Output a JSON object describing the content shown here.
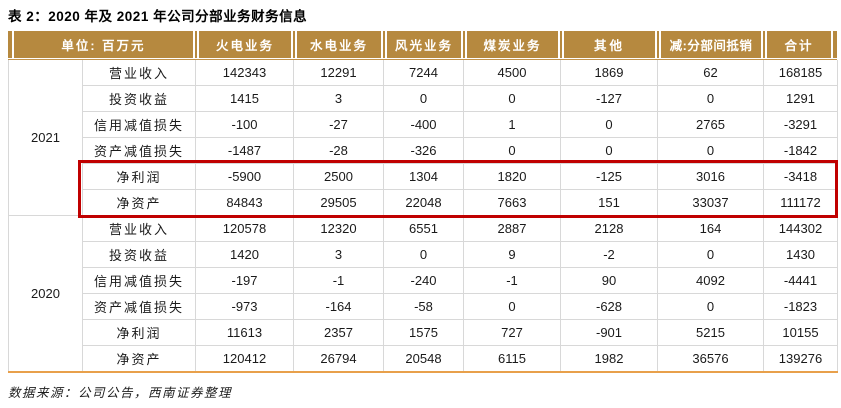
{
  "title": "表 2：2020 年及 2021 年公司分部业务财务信息",
  "source_note": "数据来源：公司公告，西南证券整理",
  "colors": {
    "header_bg": "#B6893F",
    "header_text": "#FFFFFF",
    "grid_line": "#D8D8D8",
    "table_bottom_line": "#E8A04B",
    "highlight_border": "#C00000"
  },
  "table": {
    "unit_header": "单位: 百万元",
    "column_headers": [
      "火电业务",
      "水电业务",
      "风光业务",
      "煤炭业务",
      "其他",
      "减:分部间抵销",
      "合计"
    ],
    "sections": [
      {
        "year": "2021",
        "rows": [
          {
            "label": "营业收入",
            "values": [
              142343,
              12291,
              7244,
              4500,
              1869,
              62,
              168185
            ]
          },
          {
            "label": "投资收益",
            "values": [
              1415,
              3,
              0,
              0,
              -127,
              0,
              1291
            ]
          },
          {
            "label": "信用减值损失",
            "values": [
              -100,
              -27,
              -400,
              1,
              0,
              2765,
              -3291
            ]
          },
          {
            "label": "资产减值损失",
            "values": [
              -1487,
              -28,
              -326,
              0,
              0,
              0,
              -1842
            ]
          },
          {
            "label": "净利润",
            "values": [
              -5900,
              2500,
              1304,
              1820,
              -125,
              3016,
              -3418
            ],
            "highlighted": true
          },
          {
            "label": "净资产",
            "values": [
              84843,
              29505,
              22048,
              7663,
              151,
              33037,
              111172
            ],
            "highlighted": true
          }
        ]
      },
      {
        "year": "2020",
        "rows": [
          {
            "label": "营业收入",
            "values": [
              120578,
              12320,
              6551,
              2887,
              2128,
              164,
              144302
            ]
          },
          {
            "label": "投资收益",
            "values": [
              1420,
              3,
              0,
              9,
              -2,
              0,
              1430
            ]
          },
          {
            "label": "信用减值损失",
            "values": [
              -197,
              -1,
              -240,
              -1,
              90,
              4092,
              -4441
            ]
          },
          {
            "label": "资产减值损失",
            "values": [
              -973,
              -164,
              -58,
              0,
              -628,
              0,
              -1823
            ]
          },
          {
            "label": "净利润",
            "values": [
              11613,
              2357,
              1575,
              727,
              -901,
              5215,
              10155
            ]
          },
          {
            "label": "净资产",
            "values": [
              120412,
              26794,
              20548,
              6115,
              1982,
              36576,
              139276
            ]
          }
        ]
      }
    ]
  }
}
